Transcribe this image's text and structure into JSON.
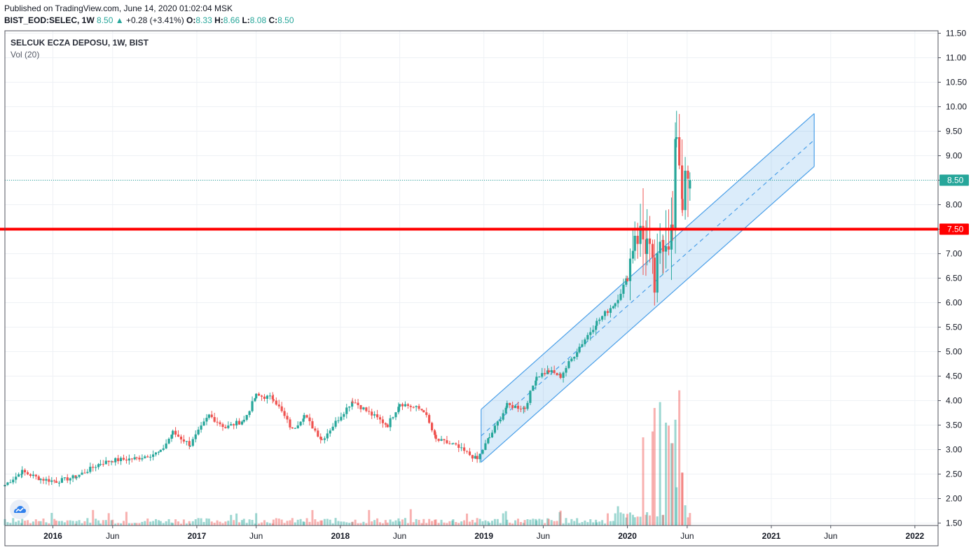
{
  "header": {
    "published": "Published on TradingView.com, June 14, 2020 01:02:04 MSK",
    "symbol": "BIST_EOD:SELEC, 1W",
    "last": "8.50",
    "change_symbol": "▲",
    "change": "+0.28 (+3.41%)",
    "open_label": "O:",
    "open": "8.33",
    "high_label": "H:",
    "high": "8.66",
    "low_label": "L:",
    "low": "8.08",
    "close_label": "C:",
    "close": "8.50"
  },
  "legend": {
    "title": "SELCUK ECZA DEPOSU, 1W, BIST",
    "volume": "Vol (20)"
  },
  "colors": {
    "up": "#26a69a",
    "down": "#ef5350",
    "channel": "#4a9fe8",
    "support": "#ff0000",
    "last_price": "#26a69a",
    "grid": "#eef1f5"
  },
  "icons": {
    "logo": "tradingview-cloud-icon"
  },
  "chart_data": {
    "type": "candlestick",
    "interval": "1W",
    "y_axis": {
      "side": "right",
      "ticks": [
        1.5,
        2.0,
        2.5,
        3.0,
        3.5,
        4.0,
        4.5,
        5.0,
        5.5,
        6.0,
        6.5,
        7.0,
        7.5,
        8.0,
        8.5,
        9.0,
        9.5,
        10.0,
        10.5,
        11.0,
        11.5
      ],
      "range": [
        1.45,
        11.55
      ]
    },
    "x_axis": {
      "range": [
        "2015-09-01",
        "2022-03-01"
      ],
      "ticks": [
        {
          "date": "2016-01-01",
          "label": "2016",
          "major": true
        },
        {
          "date": "2016-06-01",
          "label": "Jun",
          "major": false
        },
        {
          "date": "2017-01-01",
          "label": "2017",
          "major": true
        },
        {
          "date": "2017-06-01",
          "label": "Jun",
          "major": false
        },
        {
          "date": "2018-01-01",
          "label": "2018",
          "major": true
        },
        {
          "date": "2018-06-01",
          "label": "Jun",
          "major": false
        },
        {
          "date": "2019-01-01",
          "label": "2019",
          "major": true
        },
        {
          "date": "2019-06-01",
          "label": "Jun",
          "major": false
        },
        {
          "date": "2020-01-01",
          "label": "2020",
          "major": true
        },
        {
          "date": "2020-06-01",
          "label": "Jun",
          "major": false
        },
        {
          "date": "2021-01-01",
          "label": "2021",
          "major": true
        },
        {
          "date": "2021-06-01",
          "label": "Jun",
          "major": false
        },
        {
          "date": "2022-01-01",
          "label": "2022",
          "major": true
        }
      ]
    },
    "price_path": [
      [
        "2015-09-01",
        2.28
      ],
      [
        "2015-10-15",
        2.55
      ],
      [
        "2015-12-01",
        2.4
      ],
      [
        "2016-01-10",
        2.35
      ],
      [
        "2016-03-01",
        2.45
      ],
      [
        "2016-05-01",
        2.72
      ],
      [
        "2016-06-01",
        2.78
      ],
      [
        "2016-08-01",
        2.82
      ],
      [
        "2016-10-01",
        2.95
      ],
      [
        "2016-11-01",
        3.35
      ],
      [
        "2016-12-15",
        3.1
      ],
      [
        "2017-02-01",
        3.7
      ],
      [
        "2017-03-15",
        3.45
      ],
      [
        "2017-05-01",
        3.6
      ],
      [
        "2017-06-01",
        4.1
      ],
      [
        "2017-07-15",
        4.05
      ],
      [
        "2017-09-01",
        3.4
      ],
      [
        "2017-10-01",
        3.7
      ],
      [
        "2017-11-15",
        3.2
      ],
      [
        "2018-02-01",
        4.0
      ],
      [
        "2018-03-15",
        3.75
      ],
      [
        "2018-05-01",
        3.5
      ],
      [
        "2018-06-01",
        3.95
      ],
      [
        "2018-08-01",
        3.8
      ],
      [
        "2018-09-01",
        3.2
      ],
      [
        "2018-10-15",
        3.1
      ],
      [
        "2018-12-15",
        2.8
      ],
      [
        "2019-01-15",
        3.25
      ],
      [
        "2019-03-01",
        3.9
      ],
      [
        "2019-04-15",
        3.85
      ],
      [
        "2019-05-15",
        4.5
      ],
      [
        "2019-06-15",
        4.6
      ],
      [
        "2019-07-15",
        4.5
      ],
      [
        "2019-09-01",
        5.1
      ],
      [
        "2019-10-15",
        5.6
      ],
      [
        "2019-12-01",
        6.0
      ],
      [
        "2020-01-01",
        6.5
      ],
      [
        "2020-01-20",
        7.5
      ],
      [
        "2020-02-20",
        7.2
      ],
      [
        "2020-03-10",
        6.3
      ],
      [
        "2020-04-01",
        7.4
      ],
      [
        "2020-04-25",
        7.4
      ],
      [
        "2020-05-05",
        9.6
      ],
      [
        "2020-05-20",
        8.2
      ],
      [
        "2020-06-08",
        8.5
      ]
    ],
    "last_close": 8.5,
    "support_line": {
      "price": 7.5,
      "label": "7.50"
    },
    "last_price_label": "8.50",
    "parallel_channel": {
      "start": {
        "date": "2018-12-25",
        "lower": 2.74,
        "upper": 3.82
      },
      "end": {
        "date": "2021-04-20",
        "lower": 8.78,
        "upper": 9.86
      }
    },
    "volume_spikes": [
      [
        "2020-02-10",
        0.3
      ],
      [
        "2020-03-02",
        0.32
      ],
      [
        "2020-03-09",
        0.4
      ],
      [
        "2020-03-23",
        0.42
      ],
      [
        "2020-04-06",
        0.35
      ],
      [
        "2020-04-13",
        0.34
      ],
      [
        "2020-04-20",
        0.28
      ],
      [
        "2020-04-27",
        0.36
      ],
      [
        "2020-05-04",
        0.13
      ],
      [
        "2020-05-11",
        0.46
      ],
      [
        "2020-05-18",
        0.18
      ]
    ]
  }
}
